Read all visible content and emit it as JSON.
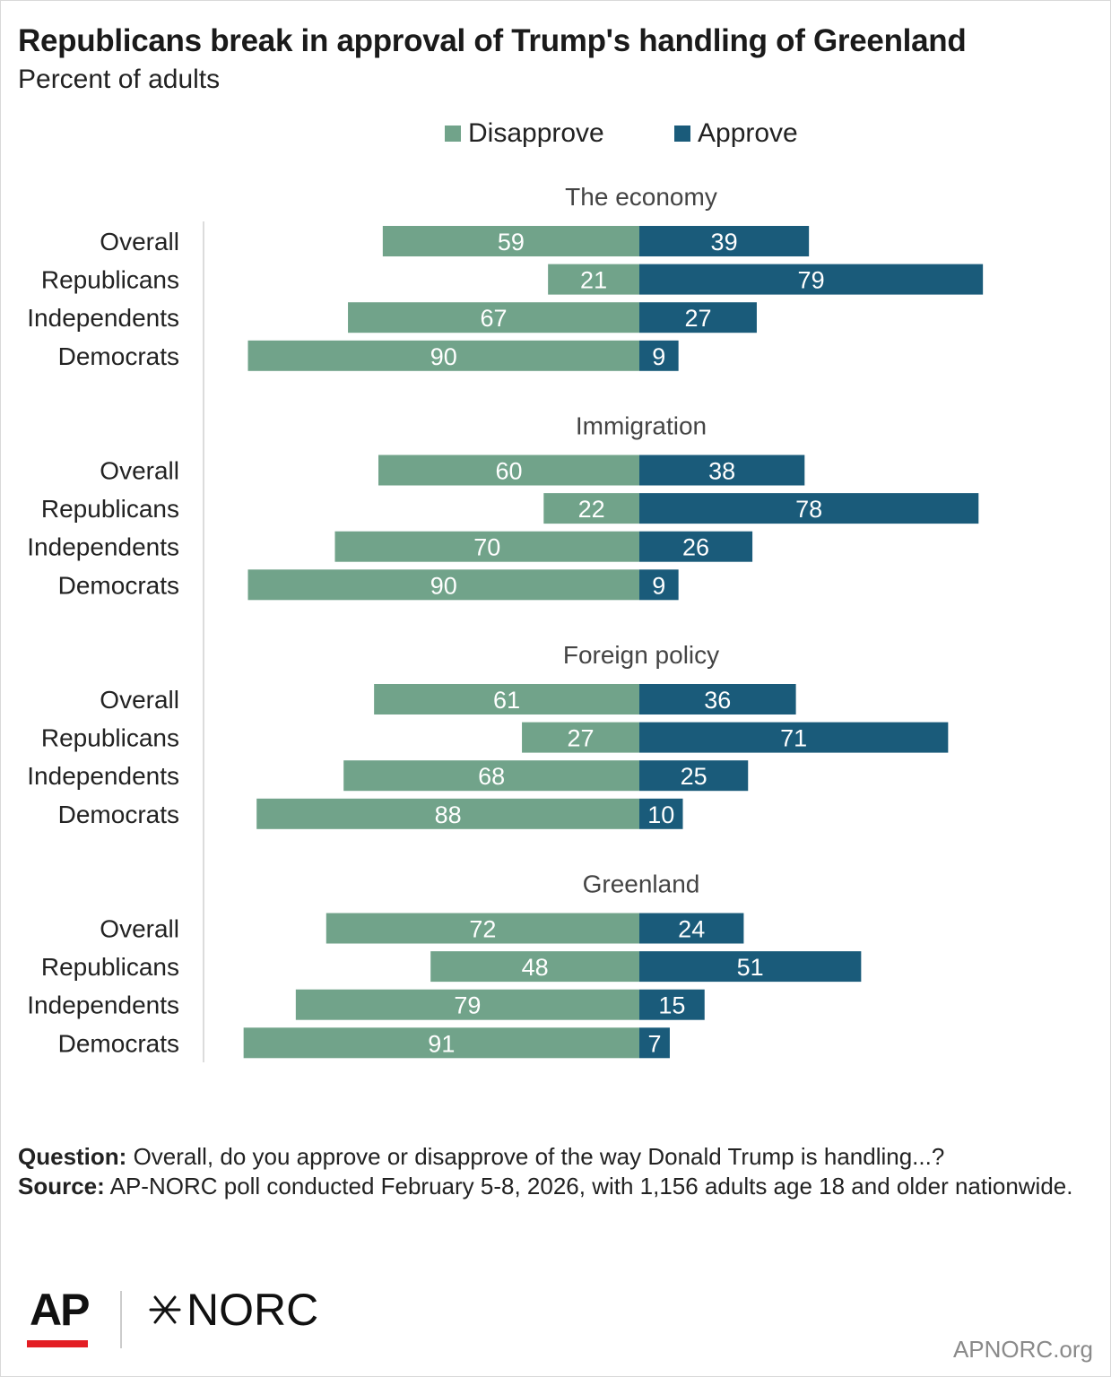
{
  "title": "Republicans break in approval of Trump's handling of Greenland",
  "subtitle": "Percent of adults",
  "legend": {
    "disapprove": "Disapprove",
    "approve": "Approve"
  },
  "colors": {
    "disapprove": "#71a38a",
    "approve": "#1a5b7a",
    "bar_text": "#ffffff"
  },
  "chart_data": {
    "type": "bar",
    "orientation": "horizontal-diverging",
    "series": [
      {
        "name": "Disapprove",
        "color": "#71a38a"
      },
      {
        "name": "Approve",
        "color": "#1a5b7a"
      }
    ],
    "groups": [
      {
        "title": "The economy",
        "rows": [
          {
            "label": "Overall",
            "disapprove": 59,
            "approve": 39
          },
          {
            "label": "Republicans",
            "disapprove": 21,
            "approve": 79
          },
          {
            "label": "Independents",
            "disapprove": 67,
            "approve": 27
          },
          {
            "label": "Democrats",
            "disapprove": 90,
            "approve": 9
          }
        ]
      },
      {
        "title": "Immigration",
        "rows": [
          {
            "label": "Overall",
            "disapprove": 60,
            "approve": 38
          },
          {
            "label": "Republicans",
            "disapprove": 22,
            "approve": 78
          },
          {
            "label": "Independents",
            "disapprove": 70,
            "approve": 26
          },
          {
            "label": "Democrats",
            "disapprove": 90,
            "approve": 9
          }
        ]
      },
      {
        "title": "Foreign policy",
        "rows": [
          {
            "label": "Overall",
            "disapprove": 61,
            "approve": 36
          },
          {
            "label": "Republicans",
            "disapprove": 27,
            "approve": 71
          },
          {
            "label": "Independents",
            "disapprove": 68,
            "approve": 25
          },
          {
            "label": "Democrats",
            "disapprove": 88,
            "approve": 10
          }
        ]
      },
      {
        "title": "Greenland",
        "rows": [
          {
            "label": "Overall",
            "disapprove": 72,
            "approve": 24
          },
          {
            "label": "Republicans",
            "disapprove": 48,
            "approve": 51
          },
          {
            "label": "Independents",
            "disapprove": 79,
            "approve": 15
          },
          {
            "label": "Democrats",
            "disapprove": 91,
            "approve": 7
          }
        ]
      }
    ]
  },
  "footer": {
    "question_label": "Question:",
    "question_text": "Overall, do you approve or disapprove of the way Donald Trump is handling...?",
    "source_label": "Source:",
    "source_text": "AP-NORC poll conducted February 5-8, 2026, with 1,156 adults age 18 and older nationwide."
  },
  "logos": {
    "ap": "AP",
    "norc": "NORC"
  },
  "site": "APNORC.org"
}
